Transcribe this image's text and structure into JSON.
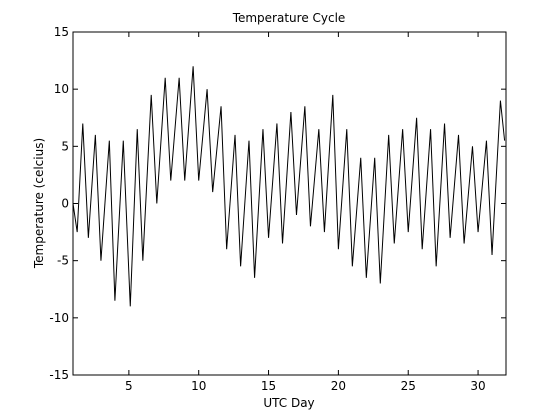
{
  "chart_data": {
    "type": "line",
    "title": "Temperature Cycle",
    "xlabel": "UTC Day",
    "ylabel": "Temperature (celcius)",
    "xlim": [
      1,
      32
    ],
    "ylim": [
      -15,
      15
    ],
    "xticks": [
      5,
      10,
      15,
      20,
      25,
      30
    ],
    "yticks": [
      15,
      10,
      5,
      0,
      -5,
      -10,
      -15
    ],
    "grid": false,
    "line_color": "#000000",
    "series": [
      {
        "points": [
          [
            1.0,
            0.0
          ],
          [
            1.3,
            -2.5
          ],
          [
            1.7,
            7.0
          ],
          [
            2.1,
            -3.0
          ],
          [
            2.6,
            6.0
          ],
          [
            3.0,
            -5.0
          ],
          [
            3.6,
            5.5
          ],
          [
            4.0,
            -8.5
          ],
          [
            4.6,
            5.5
          ],
          [
            5.1,
            -9.0
          ],
          [
            5.6,
            6.5
          ],
          [
            6.0,
            -5.0
          ],
          [
            6.6,
            9.5
          ],
          [
            7.0,
            0.0
          ],
          [
            7.6,
            11.0
          ],
          [
            8.0,
            2.0
          ],
          [
            8.6,
            11.0
          ],
          [
            9.0,
            2.0
          ],
          [
            9.6,
            12.0
          ],
          [
            10.0,
            2.0
          ],
          [
            10.6,
            10.0
          ],
          [
            11.0,
            1.0
          ],
          [
            11.6,
            8.5
          ],
          [
            12.0,
            -4.0
          ],
          [
            12.6,
            6.0
          ],
          [
            13.0,
            -5.5
          ],
          [
            13.6,
            5.5
          ],
          [
            14.0,
            -6.5
          ],
          [
            14.6,
            6.5
          ],
          [
            15.0,
            -3.0
          ],
          [
            15.6,
            7.0
          ],
          [
            16.0,
            -3.5
          ],
          [
            16.6,
            8.0
          ],
          [
            17.0,
            -1.0
          ],
          [
            17.6,
            8.5
          ],
          [
            18.0,
            -2.0
          ],
          [
            18.6,
            6.5
          ],
          [
            19.0,
            -2.5
          ],
          [
            19.6,
            9.5
          ],
          [
            20.0,
            -4.0
          ],
          [
            20.6,
            6.5
          ],
          [
            21.0,
            -5.5
          ],
          [
            21.6,
            4.0
          ],
          [
            22.0,
            -6.5
          ],
          [
            22.6,
            4.0
          ],
          [
            23.0,
            -7.0
          ],
          [
            23.6,
            6.0
          ],
          [
            24.0,
            -3.5
          ],
          [
            24.6,
            6.5
          ],
          [
            25.0,
            -2.5
          ],
          [
            25.6,
            7.5
          ],
          [
            26.0,
            -4.0
          ],
          [
            26.6,
            6.5
          ],
          [
            27.0,
            -5.5
          ],
          [
            27.6,
            7.0
          ],
          [
            28.0,
            -3.0
          ],
          [
            28.6,
            6.0
          ],
          [
            29.0,
            -3.5
          ],
          [
            29.6,
            5.0
          ],
          [
            30.0,
            -2.5
          ],
          [
            30.6,
            5.5
          ],
          [
            31.0,
            -4.5
          ],
          [
            31.6,
            9.0
          ],
          [
            31.9,
            5.5
          ]
        ]
      }
    ]
  }
}
